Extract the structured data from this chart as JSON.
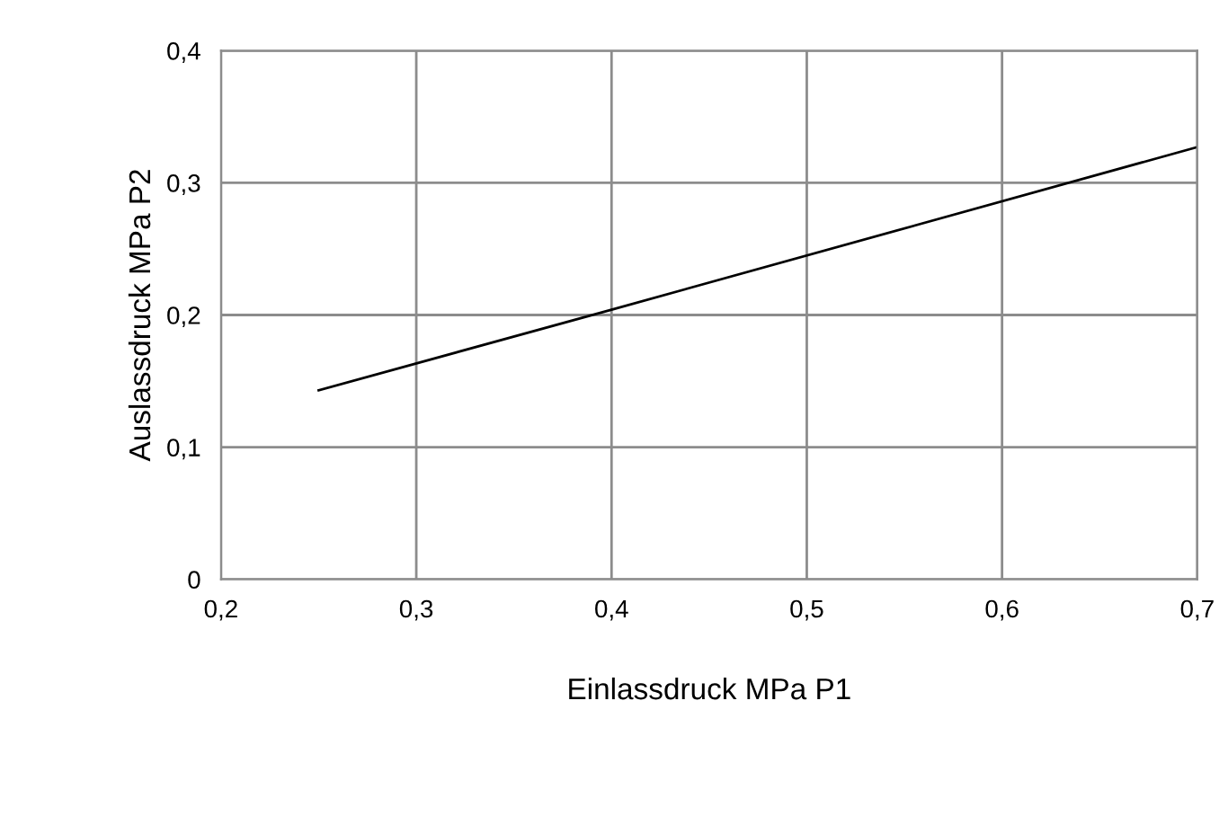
{
  "chart_data": {
    "type": "line",
    "xlabel": "Einlassdruck MPa P1",
    "ylabel": "Auslassdruck MPa P2",
    "x": [
      0.25,
      0.4,
      0.7
    ],
    "series": [
      {
        "color": "#000000",
        "values": [
          0.143,
          0.204,
          0.327
        ]
      }
    ],
    "xlim": [
      0.2,
      0.7
    ],
    "ylim": [
      0,
      0.4
    ],
    "xticks": [
      {
        "value": 0.2,
        "label": "0,2"
      },
      {
        "value": 0.3,
        "label": "0,3"
      },
      {
        "value": 0.4,
        "label": "0,4"
      },
      {
        "value": 0.5,
        "label": "0,5"
      },
      {
        "value": 0.6,
        "label": "0,6"
      },
      {
        "value": 0.7,
        "label": "0,7"
      }
    ],
    "yticks": [
      0,
      {
        "value": 0.1,
        "label": "0,1"
      },
      {
        "value": 0.2,
        "label": "0,2"
      },
      {
        "value": 0.3,
        "label": "0,3"
      },
      {
        "value": 0.4,
        "label": "0,4"
      }
    ],
    "grid": true,
    "marker": "none",
    "line_style": "solid"
  }
}
